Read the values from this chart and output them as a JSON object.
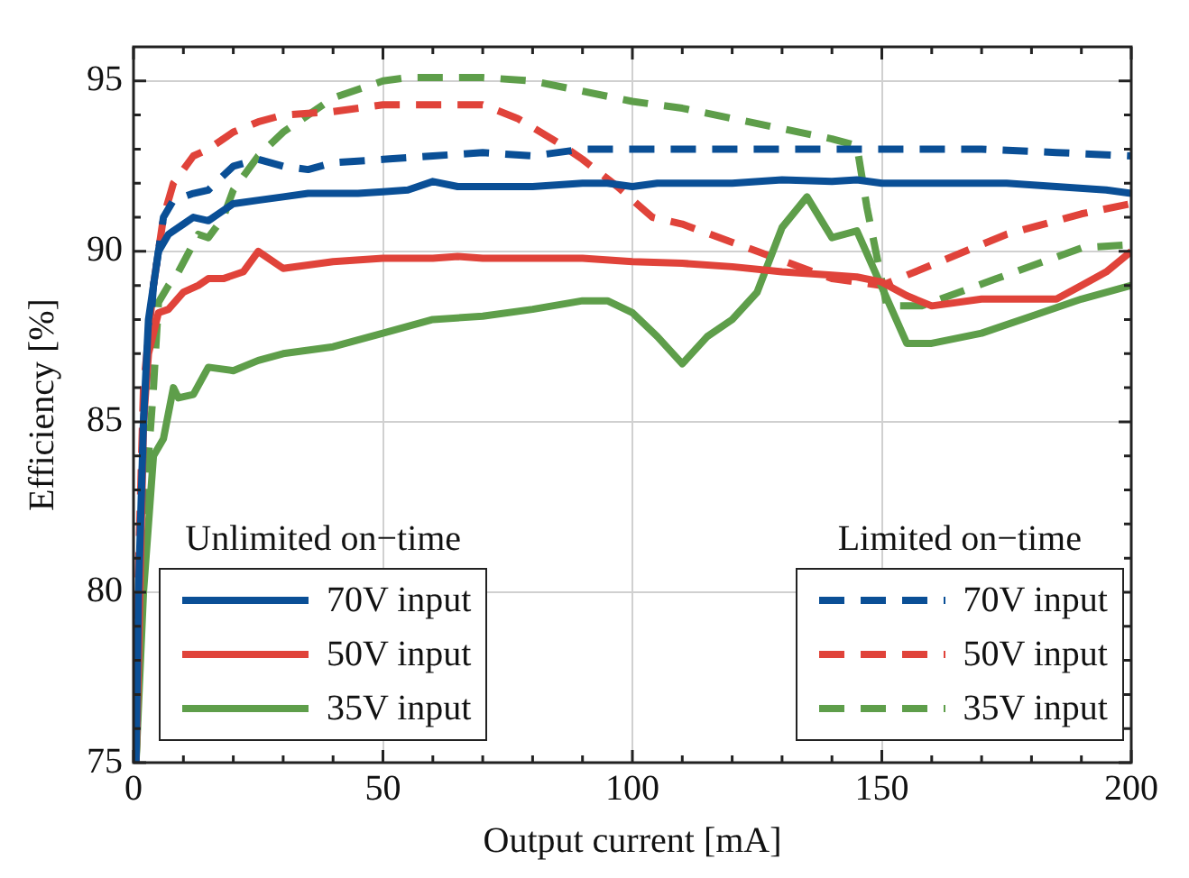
{
  "chart_data": {
    "type": "line",
    "xlabel": "Output current [mA]",
    "ylabel": "Efficiency [%]",
    "xlim": [
      0,
      200
    ],
    "ylim": [
      75,
      96
    ],
    "xticks": [
      0,
      {
        "value": 10,
        "label": null
      },
      {
        "value": 20,
        "label": null
      },
      {
        "value": 30,
        "label": null
      },
      {
        "value": 40,
        "label": null
      },
      50,
      {
        "value": 60,
        "label": null
      },
      {
        "value": 70,
        "label": null
      },
      {
        "value": 80,
        "label": null
      },
      {
        "value": 90,
        "label": null
      },
      100,
      {
        "value": 110,
        "label": null
      },
      {
        "value": 120,
        "label": null
      },
      {
        "value": 130,
        "label": null
      },
      {
        "value": 140,
        "label": null
      },
      150,
      {
        "value": 160,
        "label": null
      },
      {
        "value": 170,
        "label": null
      },
      {
        "value": 180,
        "label": null
      },
      {
        "value": 190,
        "label": null
      },
      200
    ],
    "yticks": [
      75,
      {
        "value": 76,
        "label": null
      },
      {
        "value": 77,
        "label": null
      },
      {
        "value": 78,
        "label": null
      },
      {
        "value": 79,
        "label": null
      },
      80,
      {
        "value": 81,
        "label": null
      },
      {
        "value": 82,
        "label": null
      },
      {
        "value": 83,
        "label": null
      },
      {
        "value": 84,
        "label": null
      },
      85,
      {
        "value": 86,
        "label": null
      },
      {
        "value": 87,
        "label": null
      },
      {
        "value": 88,
        "label": null
      },
      {
        "value": 89,
        "label": null
      },
      90,
      {
        "value": 91,
        "label": null
      },
      {
        "value": 92,
        "label": null
      },
      {
        "value": 93,
        "label": null
      },
      {
        "value": 94,
        "label": null
      },
      95
    ],
    "grid": true,
    "legend": "bottom",
    "marker": "none",
    "annotations": [
      "Unlimited on−time",
      "Limited on−time"
    ],
    "series": [
      {
        "name": "70V input",
        "color": "#0a4f96",
        "line_style": "solid",
        "x": [
          0.5,
          1,
          2,
          3,
          5,
          7,
          10,
          12,
          15,
          18,
          20,
          25,
          30,
          35,
          40,
          45,
          50,
          55,
          60,
          65,
          70,
          80,
          90,
          95,
          100,
          105,
          120,
          130,
          140,
          145,
          150,
          160,
          175,
          185,
          195,
          200
        ],
        "values": [
          75,
          80,
          85,
          88,
          90,
          90.5,
          90.8,
          91,
          90.9,
          91.2,
          91.4,
          91.5,
          91.6,
          91.7,
          91.7,
          91.7,
          91.75,
          91.8,
          92.05,
          91.9,
          91.9,
          91.9,
          92,
          92,
          91.9,
          92,
          92,
          92.1,
          92.05,
          92.1,
          92,
          92,
          92,
          91.9,
          91.8,
          91.7
        ]
      },
      {
        "name": "50V input",
        "color": "#e0433a",
        "line_style": "solid",
        "x": [
          0.5,
          1,
          2,
          3,
          5,
          7,
          10,
          13,
          15,
          18,
          22,
          25,
          30,
          40,
          50,
          60,
          65,
          70,
          90,
          100,
          110,
          120,
          130,
          140,
          145,
          150,
          155,
          160,
          170,
          185,
          190,
          195,
          200
        ],
        "values": [
          75,
          78,
          85,
          87,
          88.2,
          88.3,
          88.8,
          89,
          89.2,
          89.2,
          89.4,
          90,
          89.5,
          89.7,
          89.8,
          89.8,
          89.85,
          89.8,
          89.8,
          89.7,
          89.65,
          89.55,
          89.4,
          89.3,
          89.25,
          89.1,
          88.7,
          88.4,
          88.6,
          88.6,
          89,
          89.4,
          90
        ]
      },
      {
        "name": "35V input",
        "color": "#5e9e4a",
        "line_style": "solid",
        "x": [
          0.5,
          2,
          4,
          6,
          8,
          9,
          12,
          15,
          20,
          25,
          30,
          40,
          50,
          60,
          70,
          80,
          90,
          95,
          100,
          105,
          110,
          115,
          120,
          125,
          130,
          135,
          140,
          145,
          155,
          160,
          170,
          180,
          190,
          200
        ],
        "values": [
          75,
          80,
          84,
          84.5,
          86,
          85.7,
          85.8,
          86.6,
          86.5,
          86.8,
          87,
          87.2,
          87.6,
          88,
          88.1,
          88.3,
          88.55,
          88.55,
          88.2,
          87.5,
          86.7,
          87.5,
          88,
          88.8,
          90.7,
          91.6,
          90.4,
          90.6,
          87.3,
          87.3,
          87.6,
          88.1,
          88.6,
          89
        ]
      },
      {
        "name": "70V input",
        "color": "#0a4f96",
        "line_style": "dashed",
        "x": [
          0.5,
          2,
          4,
          6,
          8,
          12,
          15,
          20,
          25,
          30,
          35,
          40,
          50,
          60,
          70,
          80,
          90,
          100,
          110,
          150,
          170,
          185,
          200
        ],
        "values": [
          75,
          85,
          89,
          91,
          91.5,
          91.7,
          91.8,
          92.5,
          92.7,
          92.5,
          92.4,
          92.6,
          92.7,
          92.8,
          92.9,
          92.8,
          93,
          93,
          93,
          93,
          93,
          92.9,
          92.8
        ]
      },
      {
        "name": "50V input",
        "color": "#e0433a",
        "line_style": "dashed",
        "x": [
          0.5,
          2,
          4,
          6,
          8,
          12,
          15,
          20,
          25,
          30,
          40,
          50,
          60,
          70,
          77,
          85,
          90,
          97,
          104,
          110,
          125,
          140,
          150,
          160,
          175,
          190,
          200
        ],
        "values": [
          78,
          86,
          89,
          91,
          92,
          92.8,
          93,
          93.5,
          93.8,
          94,
          94.1,
          94.3,
          94.3,
          94.3,
          93.9,
          93.2,
          92.7,
          91.9,
          91,
          90.8,
          90,
          89.2,
          89,
          89.6,
          90.5,
          91.1,
          91.4
        ]
      },
      {
        "name": "35V input",
        "color": "#5e9e4a",
        "line_style": "dashed",
        "x": [
          0.5,
          2,
          4,
          5,
          7,
          9,
          13,
          15,
          18,
          20,
          25,
          30,
          35,
          40,
          50,
          55,
          70,
          80,
          90,
          100,
          110,
          120,
          130,
          140,
          145,
          147,
          151,
          158,
          173,
          190,
          200
        ],
        "values": [
          75,
          82,
          86,
          88.5,
          89,
          89.4,
          90.5,
          90.4,
          91,
          91.8,
          92.8,
          93.5,
          94,
          94.5,
          95,
          95.1,
          95.1,
          95,
          94.7,
          94.4,
          94.2,
          93.9,
          93.6,
          93.3,
          93.1,
          91.3,
          88.4,
          88.4,
          89.2,
          90.1,
          90.2
        ]
      }
    ]
  }
}
